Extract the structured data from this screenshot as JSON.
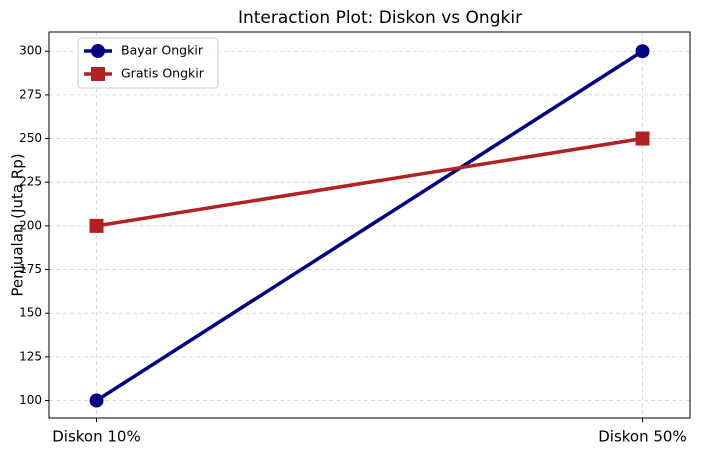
{
  "chart_data": {
    "type": "line",
    "title": "Interaction Plot: Diskon vs Ongkir",
    "y_label": "Penjualan (Juta Rp)",
    "categories": [
      "Diskon 10%",
      "Diskon 50%"
    ],
    "series": [
      {
        "name": "Bayar Ongkir",
        "color": "#000080",
        "marker": "circle",
        "values": [
          100,
          300
        ]
      },
      {
        "name": "Gratis Ongkir",
        "color": "#b22222",
        "marker": "square",
        "values": [
          200,
          250
        ]
      }
    ],
    "ylim": [
      90,
      311
    ],
    "yticks": [
      100,
      125,
      150,
      175,
      200,
      225,
      250,
      275,
      300
    ],
    "grid": true,
    "legend": "upper left"
  }
}
